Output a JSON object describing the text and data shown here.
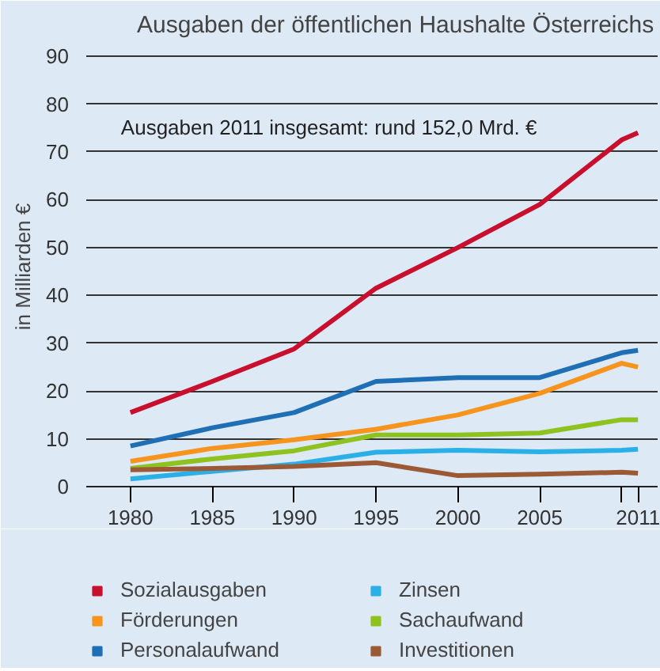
{
  "chart_data": {
    "type": "line",
    "title": "Ausgaben der öffentlichen Haushalte Österreichs",
    "ylabel": "in Milliarden €",
    "annotations": [
      "Ausgaben 2011 insgesamt: rund 152,0 Mrd. €"
    ],
    "x": [
      1980,
      1985,
      1990,
      1995,
      2000,
      2005,
      2010,
      2011
    ],
    "xlim": [
      1977.3,
      2012.2
    ],
    "xticks": [
      1980,
      1985,
      1990,
      1995,
      2000,
      2005,
      {
        "value": 2010,
        "label": null
      },
      2011
    ],
    "ylim": [
      0,
      92
    ],
    "yticks": [
      0,
      10,
      20,
      30,
      40,
      50,
      60,
      70,
      80,
      90
    ],
    "grid": "y",
    "legend": "bottom",
    "line_style": "solid",
    "series": [
      {
        "name": "Sozialausgaben",
        "color": "#c8102e",
        "values": [
          15.5,
          22,
          28.8,
          41.5,
          50,
          59,
          72.5,
          74
        ]
      },
      {
        "name": "Personalaufwand",
        "color": "#1f6fb5",
        "values": [
          8.5,
          12.3,
          15.5,
          22,
          22.8,
          22.8,
          28,
          28.5
        ]
      },
      {
        "name": "Sachaufwand",
        "color": "#8dc21f",
        "values": [
          3.8,
          5.8,
          7.5,
          10.8,
          10.8,
          11.2,
          14,
          14
        ]
      },
      {
        "name": "Förderungen",
        "color": "#f7941d",
        "values": [
          5.3,
          8,
          9.8,
          12,
          15,
          19.5,
          25.8,
          25
        ]
      },
      {
        "name": "Zinsen",
        "color": "#2ab0e6",
        "values": [
          1.6,
          3.2,
          4.7,
          7.2,
          7.6,
          7.3,
          7.6,
          7.8
        ]
      },
      {
        "name": "Investitionen",
        "color": "#9b5a35",
        "values": [
          3.5,
          3.8,
          4.2,
          5.0,
          2.3,
          2.6,
          3.0,
          2.8
        ]
      }
    ]
  }
}
